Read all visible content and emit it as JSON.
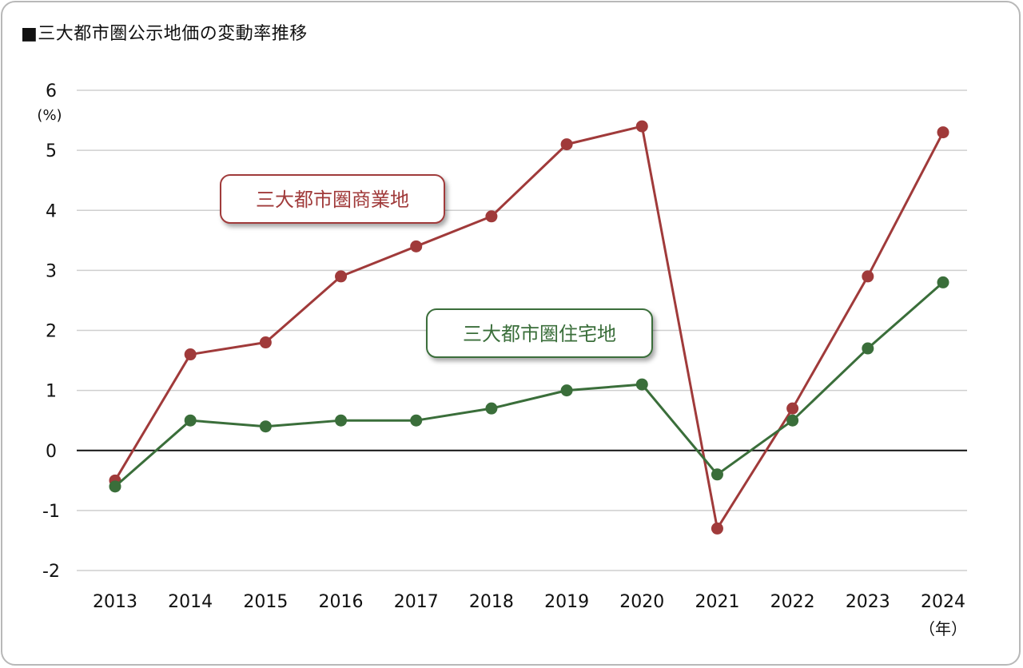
{
  "title": "■三大都市圏公示地価の変動率推移",
  "chart_data": {
    "type": "line",
    "title": "■三大都市圏公示地価の変動率推移",
    "categories": [
      "2013",
      "2014",
      "2015",
      "2016",
      "2017",
      "2018",
      "2019",
      "2020",
      "2021",
      "2022",
      "2023",
      "2024"
    ],
    "xlabel": "（年）",
    "ylabel": "(%)",
    "ylim": [
      -2,
      6
    ],
    "yticks": [
      6,
      5,
      4,
      3,
      2,
      1,
      0,
      -1,
      -2
    ],
    "grid": true,
    "series": [
      {
        "name": "三大都市圏商業地",
        "color": "#a03a3a",
        "values": [
          -0.5,
          1.6,
          1.8,
          2.9,
          3.4,
          3.9,
          5.1,
          5.4,
          -1.3,
          0.7,
          2.9,
          5.3
        ]
      },
      {
        "name": "三大都市圏住宅地",
        "color": "#3a6e3a",
        "values": [
          -0.6,
          0.5,
          0.4,
          0.5,
          0.5,
          0.7,
          1.0,
          1.1,
          -0.4,
          0.5,
          1.7,
          2.8
        ]
      }
    ]
  }
}
